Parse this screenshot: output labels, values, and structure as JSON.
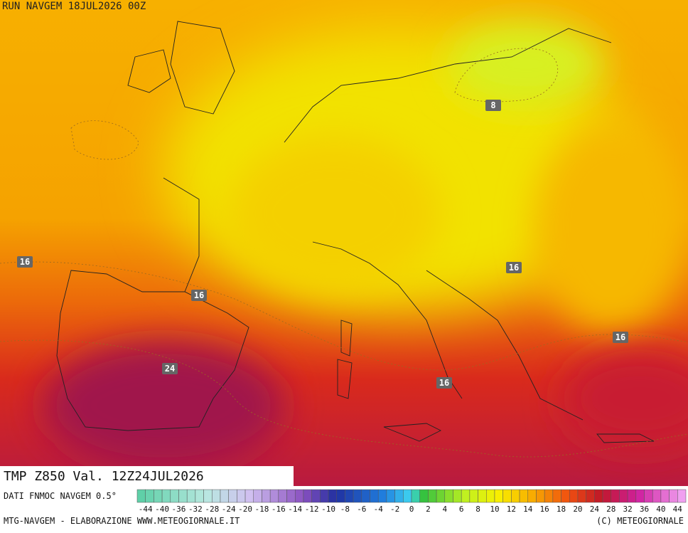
{
  "header": {
    "run": "RUN NAVGEM 18JUL2026 00Z"
  },
  "map": {
    "contour_labels": [
      16,
      16,
      24,
      8,
      16,
      16,
      16
    ]
  },
  "footer": {
    "title": "TMP Z850 Val. 12Z24JUL2026",
    "source": "DATI FNMOC NAVGEM 0.5°",
    "colorbar_ticks": [
      -44,
      -40,
      -36,
      -32,
      -28,
      -24,
      -20,
      -18,
      -16,
      -14,
      -12,
      -10,
      -8,
      -6,
      -4,
      -2,
      0,
      2,
      4,
      6,
      8,
      10,
      12,
      14,
      16,
      18,
      20,
      24,
      28,
      32,
      36,
      40,
      44
    ],
    "credit": "MTG-NAVGEM - ELABORAZIONE WWW.METEOGIORNALE.IT",
    "copyright": "(C) METEOGIORNALE"
  }
}
